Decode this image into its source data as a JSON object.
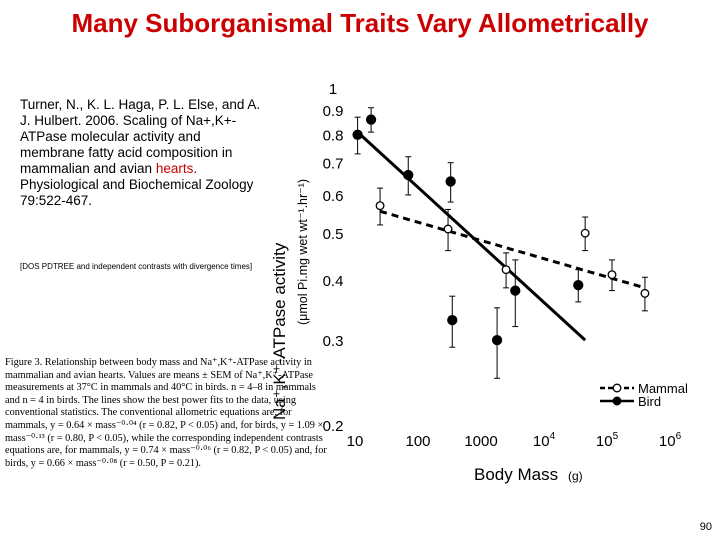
{
  "slide": {
    "title": "Many Suborganismal Traits Vary Allometrically",
    "citation_pre": "Turner, N., K. L. Haga, P. L. Else, and A. J. Hulbert. 2006. Scaling of Na+,K+-ATPase molecular activity and membrane fatty acid composition in mammalian and avian ",
    "citation_link": "hearts",
    "citation_post": ". Physiological and Biochemical Zoology 79:522-467.",
    "note": "[DOS PDTREE and independent contrasts with divergence times]",
    "caption": "Figure 3. Relationship between body mass and Na⁺,K⁺-ATPase activity in mammalian and avian hearts. Values are means ± SEM of Na⁺,K⁺-ATPase measurements at 37°C in mammals and 40°C in birds. n = 4–8 in mammals and n = 4 in birds. The lines show the best power fits to the data, using conventional statistics. The conventional allometric equations are, for mammals, y = 0.64 × mass⁻⁰·⁰⁴ (r = 0.82, P < 0.05) and, for birds, y = 1.09 × mass⁻⁰·¹³ (r = 0.80, P < 0.05), while the corresponding independent contrasts equations are, for mammals, y = 0.74 × mass⁻⁰·⁰⁶ (r = 0.82, P < 0.05) and, for birds, y = 0.66 × mass⁻⁰·⁰⁸ (r = 0.50, P = 0.21).",
    "page_number": "90"
  },
  "chart_data": {
    "type": "scatter",
    "xscale": "log",
    "yscale": "log",
    "xlim": [
      10,
      1000000
    ],
    "ylim": [
      0.2,
      1
    ],
    "xticks": [
      {
        "value": 10,
        "base": "10",
        "exp": ""
      },
      {
        "value": 100,
        "base": "100",
        "exp": ""
      },
      {
        "value": 1000,
        "base": "1000",
        "exp": ""
      },
      {
        "value": 10000,
        "base": "10",
        "exp": "4"
      },
      {
        "value": 100000,
        "base": "10",
        "exp": "5"
      },
      {
        "value": 1000000,
        "base": "10",
        "exp": "6"
      }
    ],
    "yticks": [
      {
        "value": 1,
        "label": "1"
      },
      {
        "value": 0.9,
        "label": "0.9"
      },
      {
        "value": 0.8,
        "label": "0.8"
      },
      {
        "value": 0.7,
        "label": "0.7"
      },
      {
        "value": 0.6,
        "label": "0.6"
      },
      {
        "value": 0.5,
        "label": "0.5"
      },
      {
        "value": 0.4,
        "label": "0.4"
      },
      {
        "value": 0.3,
        "label": "0.3"
      },
      {
        "value": 0.2,
        "label": "0.2"
      }
    ],
    "xlabel": "Body Mass",
    "xlabel_unit": "(g)",
    "ylabel_main": "Na⁺,K⁺-ATPase activity",
    "ylabel_unit": "(μmol Pi.mg wet wt⁻¹.hr⁻¹)",
    "series": [
      {
        "name": "Mammal",
        "marker": "open",
        "line": "dashed",
        "points": [
          {
            "x": 25,
            "y": 0.57,
            "err": 0.05
          },
          {
            "x": 300,
            "y": 0.51,
            "err": 0.05
          },
          {
            "x": 2500,
            "y": 0.42,
            "err": 0.035
          },
          {
            "x": 45000,
            "y": 0.5,
            "err": 0.04
          },
          {
            "x": 120000,
            "y": 0.41,
            "err": 0.03
          },
          {
            "x": 400000,
            "y": 0.375,
            "err": 0.03
          }
        ],
        "fit": {
          "x": [
            25,
            400000
          ],
          "y": [
            0.555,
            0.385
          ]
        }
      },
      {
        "name": "Bird",
        "marker": "filled",
        "line": "solid",
        "points": [
          {
            "x": 11,
            "y": 0.8,
            "err": 0.07
          },
          {
            "x": 18,
            "y": 0.86,
            "err": 0.05
          },
          {
            "x": 70,
            "y": 0.66,
            "err": 0.06
          },
          {
            "x": 330,
            "y": 0.64,
            "err": 0.06
          },
          {
            "x": 350,
            "y": 0.33,
            "err": 0.04
          },
          {
            "x": 1800,
            "y": 0.3,
            "err": 0.05
          },
          {
            "x": 3500,
            "y": 0.38,
            "err": 0.06
          },
          {
            "x": 35000,
            "y": 0.39,
            "err": 0.03
          }
        ],
        "fit": {
          "x": [
            11,
            45000
          ],
          "y": [
            0.81,
            0.3
          ]
        }
      }
    ],
    "legend": [
      {
        "name": "Mammal",
        "marker": "open",
        "line": "dashed"
      },
      {
        "name": "Bird",
        "marker": "filled",
        "line": "solid"
      }
    ],
    "legend_position": "bottom-right"
  }
}
